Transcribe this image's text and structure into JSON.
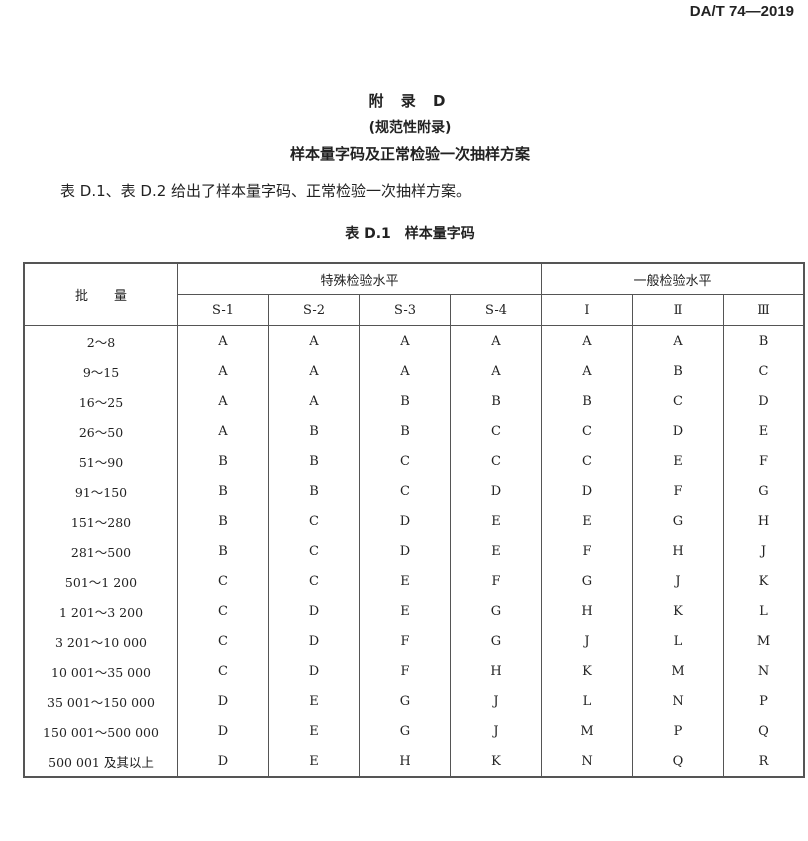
{
  "header": {
    "standard_number": "DA/T 74—2019"
  },
  "titles": {
    "appendix": "附 录 D",
    "note": "(规范性附录)",
    "subject": "样本量字码及正常检验一次抽样方案"
  },
  "paragraph": "表 D.1、表 D.2 给出了样本量字码、正常检验一次抽样方案。",
  "table": {
    "caption": "表 D.1　样本量字码",
    "lot_header": "批　　量",
    "group_special": "特殊检验水平",
    "group_general": "一般检验水平",
    "levels": [
      "S-1",
      "S-2",
      "S-3",
      "S-4",
      "Ⅰ",
      "Ⅱ",
      "Ⅲ"
    ],
    "rows": [
      {
        "lot": "2～8",
        "codes": [
          "A",
          "A",
          "A",
          "A",
          "A",
          "A",
          "B"
        ]
      },
      {
        "lot": "9～15",
        "codes": [
          "A",
          "A",
          "A",
          "A",
          "A",
          "B",
          "C"
        ]
      },
      {
        "lot": "16～25",
        "codes": [
          "A",
          "A",
          "B",
          "B",
          "B",
          "C",
          "D"
        ]
      },
      {
        "lot": "26～50",
        "codes": [
          "A",
          "B",
          "B",
          "C",
          "C",
          "D",
          "E"
        ]
      },
      {
        "lot": "51～90",
        "codes": [
          "B",
          "B",
          "C",
          "C",
          "C",
          "E",
          "F"
        ]
      },
      {
        "lot": "91～150",
        "codes": [
          "B",
          "B",
          "C",
          "D",
          "D",
          "F",
          "G"
        ]
      },
      {
        "lot": "151～280",
        "codes": [
          "B",
          "C",
          "D",
          "E",
          "E",
          "G",
          "H"
        ]
      },
      {
        "lot": "281～500",
        "codes": [
          "B",
          "C",
          "D",
          "E",
          "F",
          "H",
          "J"
        ]
      },
      {
        "lot": "501～1 200",
        "codes": [
          "C",
          "C",
          "E",
          "F",
          "G",
          "J",
          "K"
        ]
      },
      {
        "lot": "1 201～3 200",
        "codes": [
          "C",
          "D",
          "E",
          "G",
          "H",
          "K",
          "L"
        ]
      },
      {
        "lot": "3 201～10 000",
        "codes": [
          "C",
          "D",
          "F",
          "G",
          "J",
          "L",
          "M"
        ]
      },
      {
        "lot": "10 001～35 000",
        "codes": [
          "C",
          "D",
          "F",
          "H",
          "K",
          "M",
          "N"
        ]
      },
      {
        "lot": "35 001～150 000",
        "codes": [
          "D",
          "E",
          "G",
          "J",
          "L",
          "N",
          "P"
        ]
      },
      {
        "lot": "150 001～500 000",
        "codes": [
          "D",
          "E",
          "G",
          "J",
          "M",
          "P",
          "Q"
        ]
      },
      {
        "lot": "500 001 及其以上",
        "codes": [
          "D",
          "E",
          "H",
          "K",
          "N",
          "Q",
          "R"
        ]
      }
    ]
  }
}
